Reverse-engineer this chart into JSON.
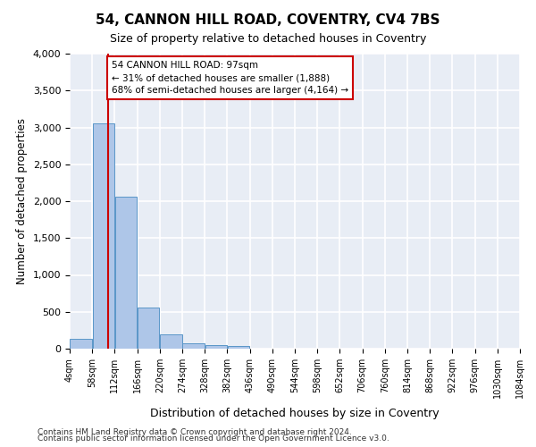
{
  "title": "54, CANNON HILL ROAD, COVENTRY, CV4 7BS",
  "subtitle": "Size of property relative to detached houses in Coventry",
  "xlabel": "Distribution of detached houses by size in Coventry",
  "ylabel": "Number of detached properties",
  "bin_edges": [
    4,
    58,
    112,
    166,
    220,
    274,
    328,
    382,
    436,
    490,
    544,
    598,
    652,
    706,
    760,
    814,
    868,
    922,
    976,
    1030,
    1084
  ],
  "bin_labels": [
    "4sqm",
    "58sqm",
    "112sqm",
    "166sqm",
    "220sqm",
    "274sqm",
    "328sqm",
    "382sqm",
    "436sqm",
    "490sqm",
    "544sqm",
    "598sqm",
    "652sqm",
    "706sqm",
    "760sqm",
    "814sqm",
    "868sqm",
    "922sqm",
    "976sqm",
    "1030sqm",
    "1084sqm"
  ],
  "bar_values": [
    130,
    3060,
    2060,
    555,
    195,
    75,
    50,
    35,
    0,
    0,
    0,
    0,
    0,
    0,
    0,
    0,
    0,
    0,
    0,
    0
  ],
  "bar_color": "#aec6e8",
  "bar_edge_color": "#5a96c8",
  "background_color": "#e8edf5",
  "grid_color": "#ffffff",
  "vline_x": 97,
  "vline_color": "#cc0000",
  "annotation_text": "54 CANNON HILL ROAD: 97sqm\n← 31% of detached houses are smaller (1,888)\n68% of semi-detached houses are larger (4,164) →",
  "annotation_box_color": "#cc0000",
  "ylim": [
    0,
    4000
  ],
  "yticks": [
    0,
    500,
    1000,
    1500,
    2000,
    2500,
    3000,
    3500,
    4000
  ],
  "footnote1": "Contains HM Land Registry data © Crown copyright and database right 2024.",
  "footnote2": "Contains public sector information licensed under the Open Government Licence v3.0.",
  "bin_width": 54
}
